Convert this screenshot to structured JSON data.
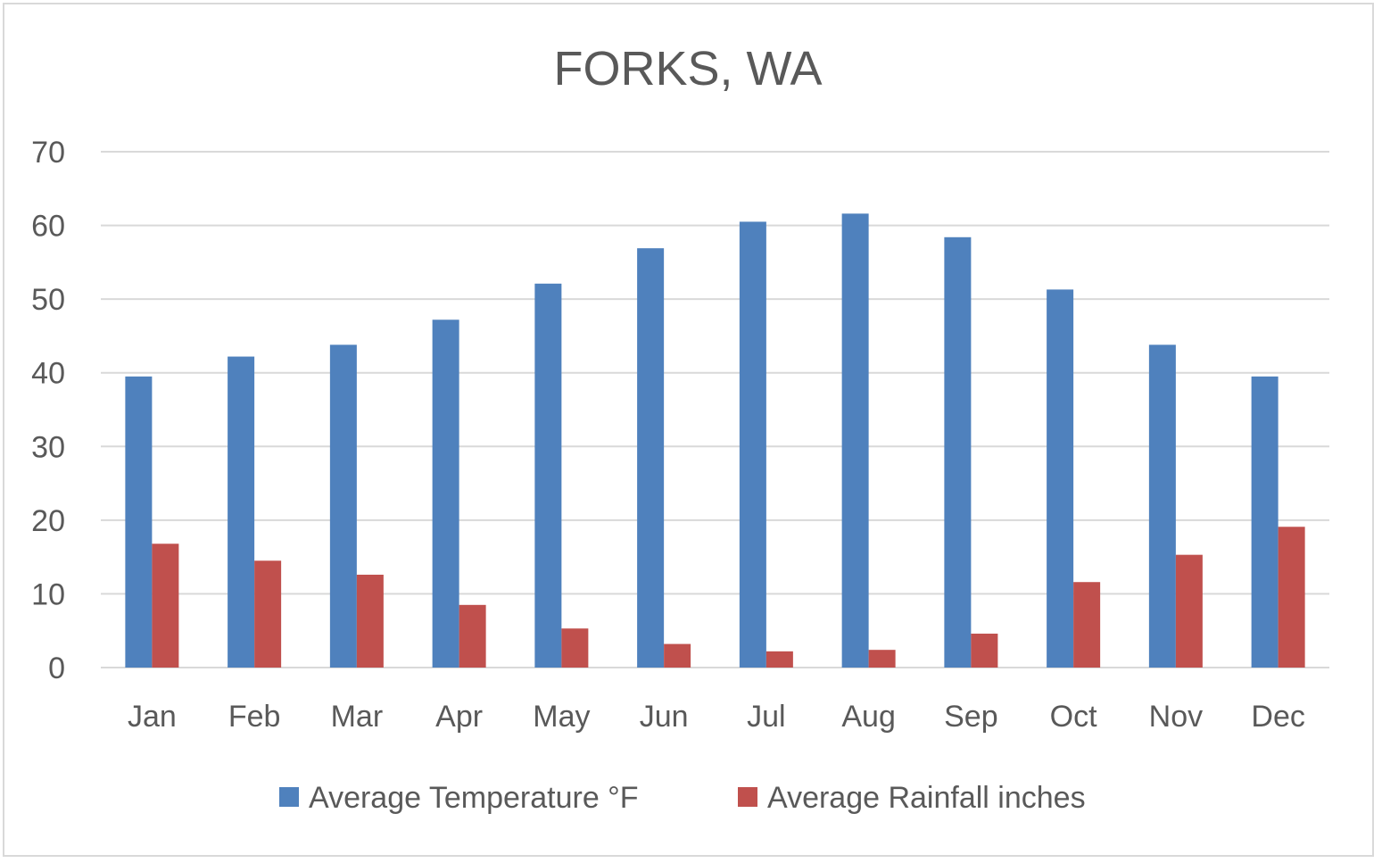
{
  "chart_data": {
    "type": "bar",
    "title": "FORKS, WA",
    "xlabel": "",
    "ylabel": "",
    "categories": [
      "Jan",
      "Feb",
      "Mar",
      "Apr",
      "May",
      "Jun",
      "Jul",
      "Aug",
      "Sep",
      "Oct",
      "Nov",
      "Dec"
    ],
    "series": [
      {
        "name": "Average Temperature °F",
        "color": "#4f81bd",
        "values": [
          39.5,
          42.2,
          43.8,
          47.2,
          52.1,
          56.9,
          60.5,
          61.6,
          58.4,
          51.3,
          43.8,
          39.5
        ]
      },
      {
        "name": "Average Rainfall inches",
        "color": "#c0504d",
        "values": [
          16.8,
          14.5,
          12.6,
          8.5,
          5.3,
          3.2,
          2.2,
          2.4,
          4.6,
          11.6,
          15.3,
          19.1
        ]
      }
    ],
    "ylim": [
      0,
      70
    ],
    "yticks": [
      0,
      10,
      20,
      30,
      40,
      50,
      60,
      70
    ],
    "grid": true,
    "legend_position": "bottom"
  }
}
